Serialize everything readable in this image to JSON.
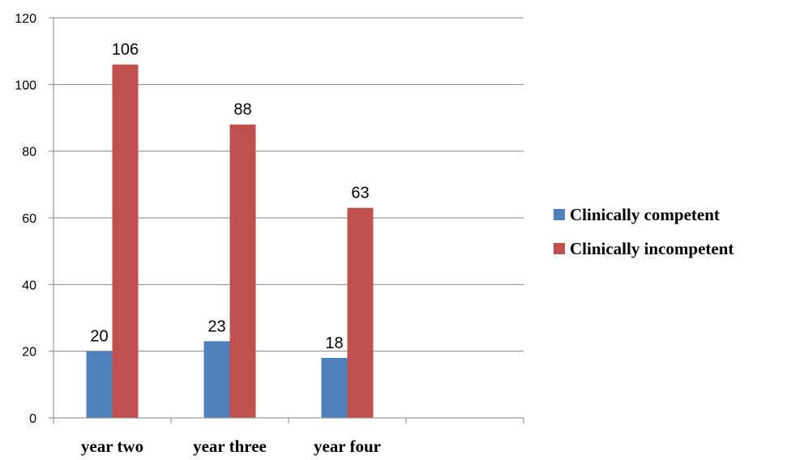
{
  "chart_data": {
    "type": "bar",
    "categories": [
      "year two",
      "year three",
      "year four",
      ""
    ],
    "series": [
      {
        "name": "Clinically competent",
        "values": [
          20,
          23,
          18,
          null
        ],
        "color": "#4f81bd"
      },
      {
        "name": "Clinically incompetent",
        "values": [
          106,
          88,
          63,
          null
        ],
        "color": "#c0504d"
      }
    ],
    "ylim": [
      0,
      120
    ],
    "yticks": [
      0,
      20,
      40,
      60,
      80,
      100,
      120
    ],
    "grid": true,
    "legend": "right",
    "title": "",
    "xlabel": "",
    "ylabel": ""
  }
}
